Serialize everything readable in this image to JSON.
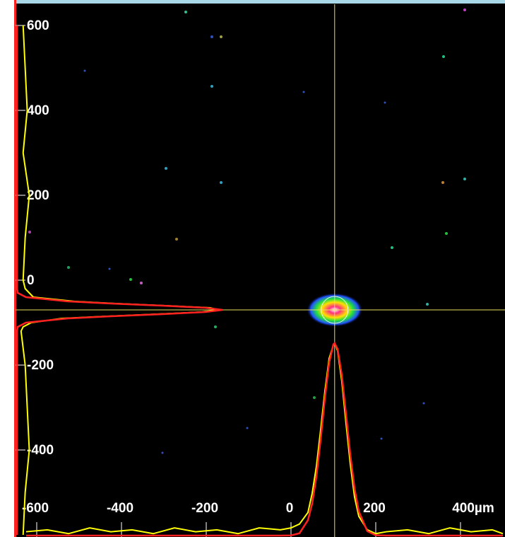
{
  "chart_data": {
    "type": "profile",
    "xlim": [
      -650,
      505
    ],
    "ylim": [
      -605,
      650
    ],
    "xticks": [
      -600,
      -400,
      -200,
      0,
      200,
      {
        "value": 400,
        "label": "400µm"
      }
    ],
    "yticks": [
      600,
      400,
      200,
      0,
      -200,
      -400
    ],
    "centroid": {
      "x": 103,
      "y": -70
    },
    "crosshair_color": "#e8e060",
    "x_profile": {
      "x": [
        -625,
        -575,
        -525,
        -475,
        -425,
        -375,
        -325,
        -275,
        -225,
        -175,
        -125,
        -75,
        -25,
        0,
        20,
        40,
        50,
        60,
        70,
        80,
        90,
        100,
        103,
        110,
        120,
        130,
        140,
        150,
        160,
        180,
        200,
        225,
        275,
        325,
        375,
        425,
        475,
        500
      ],
      "series": [
        {
          "color": "#ffff00",
          "values": [
            2,
            3,
            1,
            4,
            2,
            3,
            1,
            4,
            2,
            3,
            1,
            4,
            3,
            4,
            6,
            12,
            22,
            36,
            55,
            75,
            92,
            99,
            100,
            96,
            80,
            58,
            37,
            20,
            10,
            3,
            1,
            2,
            3,
            1,
            4,
            2,
            3,
            1
          ]
        },
        {
          "color": "#ff2020",
          "values": [
            0,
            0,
            0,
            0,
            0,
            0,
            0,
            0,
            0,
            0,
            0,
            0,
            0,
            0.1,
            1.2,
            8,
            16.7,
            30.7,
            49.9,
            71.4,
            89.8,
            99.4,
            100,
            96.9,
            83.2,
            62.8,
            41.8,
            24.4,
            12.6,
            2.3,
            0.2,
            0,
            0,
            0,
            0,
            0,
            0,
            0
          ]
        }
      ]
    },
    "y_profile": {
      "y": [
        600,
        500,
        400,
        300,
        200,
        100,
        0,
        -20,
        -30,
        -40,
        -50,
        -55,
        -60,
        -65,
        -70,
        -75,
        -80,
        -85,
        -90,
        -100,
        -110,
        -120,
        -200,
        -300,
        -400,
        -500,
        -600
      ],
      "series": [
        {
          "color": "#ffff00",
          "values": [
            3,
            4,
            5,
            3,
            6,
            4,
            3,
            4,
            6,
            8,
            28,
            48,
            72,
            94,
            98,
            90,
            68,
            44,
            22,
            7,
            3,
            2,
            4,
            5,
            6,
            4,
            3
          ]
        },
        {
          "color": "#ff2020",
          "values": [
            0,
            0,
            0,
            0,
            0,
            0,
            0,
            0,
            0.4,
            4.4,
            24.9,
            45.8,
            70.7,
            91.7,
            100,
            91.7,
            70.7,
            45.8,
            24.9,
            4.4,
            0.4,
            0,
            0,
            0,
            0,
            0,
            0
          ]
        }
      ]
    }
  }
}
